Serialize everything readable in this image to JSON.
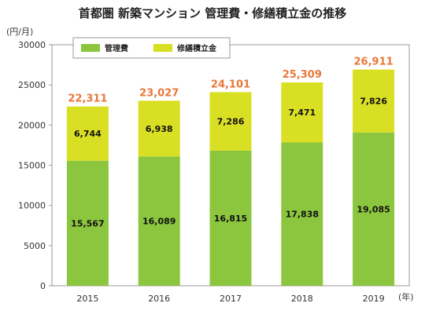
{
  "chart_data": {
    "type": "bar",
    "stacked": true,
    "title": "首都圏 新築マンション 管理費・修繕積立金の推移",
    "ylabel": "(円/月)",
    "xlabel": "(年)",
    "categories": [
      "2015",
      "2016",
      "2017",
      "2018",
      "2019"
    ],
    "ylim": [
      0,
      30000
    ],
    "yticks": [
      "0",
      "5000",
      "10000",
      "15000",
      "20000",
      "25000",
      "30000"
    ],
    "series": [
      {
        "name": "管理費",
        "color": "#8cc63f",
        "values": [
          15567,
          16089,
          16815,
          17838,
          19085
        ],
        "labels": [
          "15,567",
          "16,089",
          "16,815",
          "17,838",
          "19,085"
        ]
      },
      {
        "name": "修繕積立金",
        "color": "#d9df23",
        "values": [
          6744,
          6938,
          7286,
          7471,
          7826
        ],
        "labels": [
          "6,744",
          "6,938",
          "7,286",
          "7,471",
          "7,826"
        ]
      }
    ],
    "totals": [
      "22,311",
      "23,027",
      "24,101",
      "25,309",
      "26,911"
    ],
    "total_color": "#e8773a",
    "legend_position": "top-left",
    "grid": false
  }
}
